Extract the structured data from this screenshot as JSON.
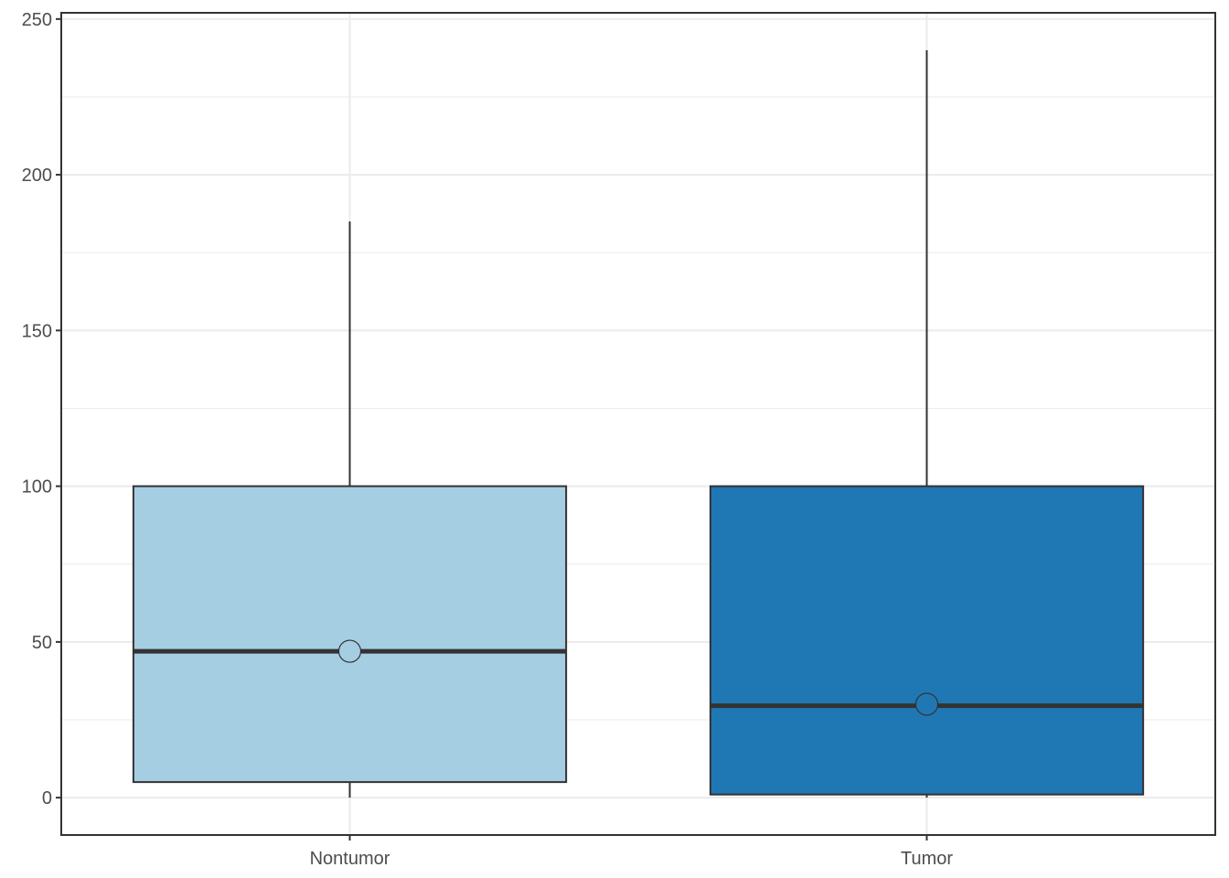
{
  "chart_data": {
    "type": "boxplot",
    "title": "",
    "xlabel": "",
    "ylabel": "",
    "ylim": [
      -12,
      252
    ],
    "y_ticks": [
      0,
      50,
      100,
      150,
      200,
      250
    ],
    "y_tick_labels": [
      "0",
      "50",
      "100",
      "150",
      "200",
      "250"
    ],
    "grid": true,
    "legend": "none",
    "categories": [
      "Nontumor",
      "Tumor"
    ],
    "boxes": [
      {
        "category": "Nontumor",
        "whisker_low": 0,
        "q1": 5,
        "median": 47,
        "q3": 100,
        "whisker_high": 185,
        "mean": 47,
        "color": "#a6cee3"
      },
      {
        "category": "Tumor",
        "whisker_low": 0,
        "q1": 1,
        "median": 29.5,
        "q3": 100,
        "whisker_high": 240,
        "mean": 30,
        "color": "#1f78b4"
      }
    ],
    "colors": {
      "grid": "#ebebeb",
      "box_line": "#333333",
      "axis_text": "#4d4d4d",
      "panel_border": "#333333"
    }
  }
}
